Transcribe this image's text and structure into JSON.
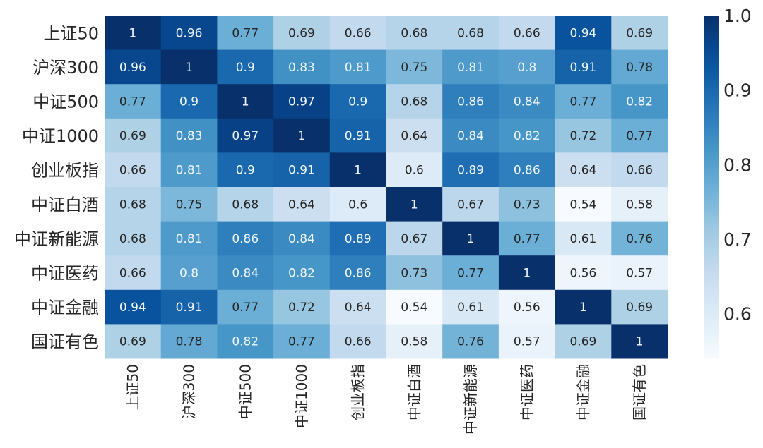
{
  "chart_data": {
    "type": "heatmap",
    "title": "",
    "xlabel": "",
    "ylabel": "",
    "colormap": "Blues",
    "color_range": [
      0.54,
      1.0
    ],
    "colors": {
      "low": "#f7fbff",
      "high": "#08306b",
      "text_dark": "#262626",
      "text_light": "#f0f6ff"
    },
    "row_labels": [
      "上证50",
      "沪深300",
      "中证500",
      "中证1000",
      "创业板指",
      "中证白酒",
      "中证新能源",
      "中证医药",
      "中证金融",
      "国证有色"
    ],
    "col_labels": [
      "上证50",
      "沪深300",
      "中证500",
      "中证1000",
      "创业板指",
      "中证白酒",
      "中证新能源",
      "中证医药",
      "中证金融",
      "国证有色"
    ],
    "values": [
      [
        1,
        0.96,
        0.77,
        0.69,
        0.66,
        0.68,
        0.68,
        0.66,
        0.94,
        0.69
      ],
      [
        0.96,
        1,
        0.9,
        0.83,
        0.81,
        0.75,
        0.81,
        0.8,
        0.91,
        0.78
      ],
      [
        0.77,
        0.9,
        1,
        0.97,
        0.9,
        0.68,
        0.86,
        0.84,
        0.77,
        0.82
      ],
      [
        0.69,
        0.83,
        0.97,
        1,
        0.91,
        0.64,
        0.84,
        0.82,
        0.72,
        0.77
      ],
      [
        0.66,
        0.81,
        0.9,
        0.91,
        1,
        0.6,
        0.89,
        0.86,
        0.64,
        0.66
      ],
      [
        0.68,
        0.75,
        0.68,
        0.64,
        0.6,
        1,
        0.67,
        0.73,
        0.54,
        0.58
      ],
      [
        0.68,
        0.81,
        0.86,
        0.84,
        0.89,
        0.67,
        1,
        0.77,
        0.61,
        0.76
      ],
      [
        0.66,
        0.8,
        0.84,
        0.82,
        0.86,
        0.73,
        0.77,
        1,
        0.56,
        0.57
      ],
      [
        0.94,
        0.91,
        0.77,
        0.72,
        0.64,
        0.54,
        0.61,
        0.56,
        1,
        0.69
      ],
      [
        0.69,
        0.78,
        0.82,
        0.77,
        0.66,
        0.58,
        0.76,
        0.57,
        0.69,
        1
      ]
    ],
    "annotations": true,
    "colorbar": {
      "position": "right",
      "ticks": [
        0.6,
        0.7,
        0.8,
        0.9,
        1.0
      ],
      "tick_labels": [
        "0.6",
        "0.7",
        "0.8",
        "0.9",
        "1.0"
      ]
    },
    "grid": false,
    "legend": "none"
  }
}
